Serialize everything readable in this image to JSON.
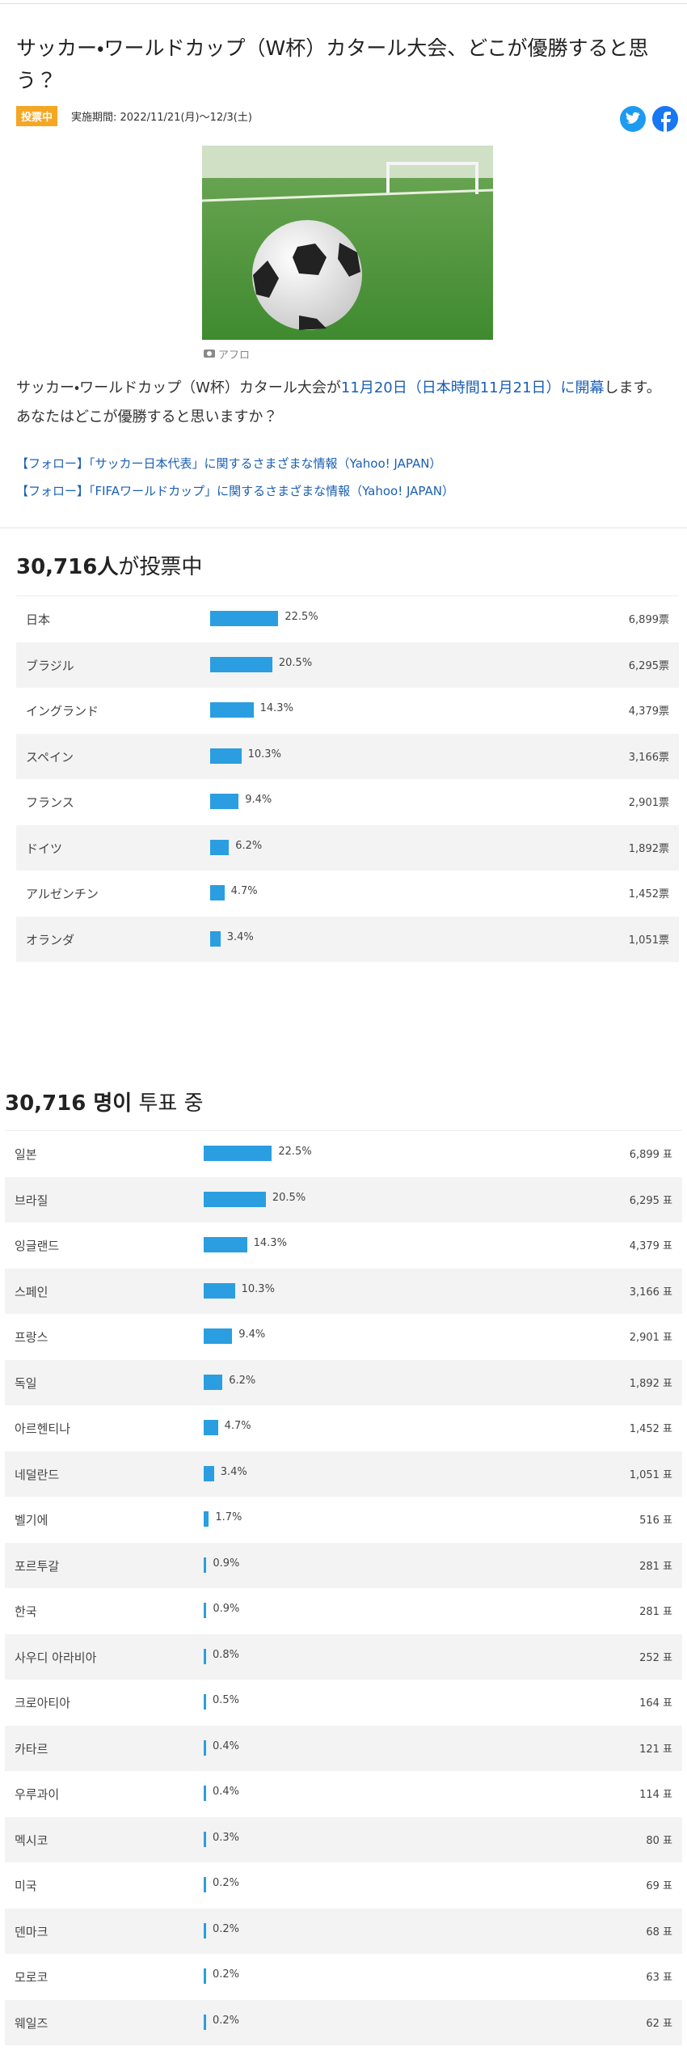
{
  "header": {
    "title": "サッカー・ワールドカップ（W杯）カタール大会、どこが優勝すると思う？",
    "badge": "投票中",
    "period": "実施期間: 2022/11/21(月)〜12/3(土)"
  },
  "photo": {
    "caption": "アフロ"
  },
  "body": {
    "parts": [
      "サッカー・ワールドカップ（W杯）カタール大会が",
      "11月20日（日本時間11月21日）に開幕",
      "します。あなたはどこが優勝すると思いますか？"
    ]
  },
  "links": [
    "【フォロー】「サッカー日本代表」に関するさまざまな情報（Yahoo! JAPAN）",
    "【フォロー】「FIFAワールドカップ」に関するさまざまな情報（Yahoo! JAPAN）"
  ],
  "poll_ja": {
    "count": "30,716人",
    "suffix": "が投票中",
    "rows": [
      {
        "name": "日本",
        "percent": 22.5,
        "percent_label": "22.5%",
        "votes": "6,899票"
      },
      {
        "name": "ブラジル",
        "percent": 20.5,
        "percent_label": "20.5%",
        "votes": "6,295票"
      },
      {
        "name": "イングランド",
        "percent": 14.3,
        "percent_label": "14.3%",
        "votes": "4,379票"
      },
      {
        "name": "スペイン",
        "percent": 10.3,
        "percent_label": "10.3%",
        "votes": "3,166票"
      },
      {
        "name": "フランス",
        "percent": 9.4,
        "percent_label": "9.4%",
        "votes": "2,901票"
      },
      {
        "name": "ドイツ",
        "percent": 6.2,
        "percent_label": "6.2%",
        "votes": "1,892票"
      },
      {
        "name": "アルゼンチン",
        "percent": 4.7,
        "percent_label": "4.7%",
        "votes": "1,452票"
      },
      {
        "name": "オランダ",
        "percent": 3.4,
        "percent_label": "3.4%",
        "votes": "1,051票"
      }
    ]
  },
  "poll_ko": {
    "count": "30,716 명이",
    "suffix": "투표 중",
    "rows": [
      {
        "name": "일본",
        "percent": 22.5,
        "percent_label": "22.5%",
        "votes": "6,899 표"
      },
      {
        "name": "브라질",
        "percent": 20.5,
        "percent_label": "20.5%",
        "votes": "6,295 표"
      },
      {
        "name": "잉글랜드",
        "percent": 14.3,
        "percent_label": "14.3%",
        "votes": "4,379 표"
      },
      {
        "name": "스페인",
        "percent": 10.3,
        "percent_label": "10.3%",
        "votes": "3,166 표"
      },
      {
        "name": "프랑스",
        "percent": 9.4,
        "percent_label": "9.4%",
        "votes": "2,901 표"
      },
      {
        "name": "독일",
        "percent": 6.2,
        "percent_label": "6.2%",
        "votes": "1,892 표"
      },
      {
        "name": "아르헨티나",
        "percent": 4.7,
        "percent_label": "4.7%",
        "votes": "1,452 표"
      },
      {
        "name": "네덜란드",
        "percent": 3.4,
        "percent_label": "3.4%",
        "votes": "1,051 표"
      },
      {
        "name": "벨기에",
        "percent": 1.7,
        "percent_label": "1.7%",
        "votes": "516 표"
      },
      {
        "name": "포르투갈",
        "percent": 0.9,
        "percent_label": "0.9%",
        "votes": "281 표"
      },
      {
        "name": "한국",
        "percent": 0.9,
        "percent_label": "0.9%",
        "votes": "281 표"
      },
      {
        "name": "사우디 아라비아",
        "percent": 0.8,
        "percent_label": "0.8%",
        "votes": "252 표"
      },
      {
        "name": "크로아티아",
        "percent": 0.5,
        "percent_label": "0.5%",
        "votes": "164 표"
      },
      {
        "name": "카타르",
        "percent": 0.4,
        "percent_label": "0.4%",
        "votes": "121 표"
      },
      {
        "name": "우루과이",
        "percent": 0.4,
        "percent_label": "0.4%",
        "votes": "114 표"
      },
      {
        "name": "멕시코",
        "percent": 0.3,
        "percent_label": "0.3%",
        "votes": "80 표"
      },
      {
        "name": "미국",
        "percent": 0.2,
        "percent_label": "0.2%",
        "votes": "69 표"
      },
      {
        "name": "덴마크",
        "percent": 0.2,
        "percent_label": "0.2%",
        "votes": "68 표"
      },
      {
        "name": "모로코",
        "percent": 0.2,
        "percent_label": "0.2%",
        "votes": "63 표"
      },
      {
        "name": "웨일즈",
        "percent": 0.2,
        "percent_label": "0.2%",
        "votes": "62 표"
      }
    ]
  }
}
